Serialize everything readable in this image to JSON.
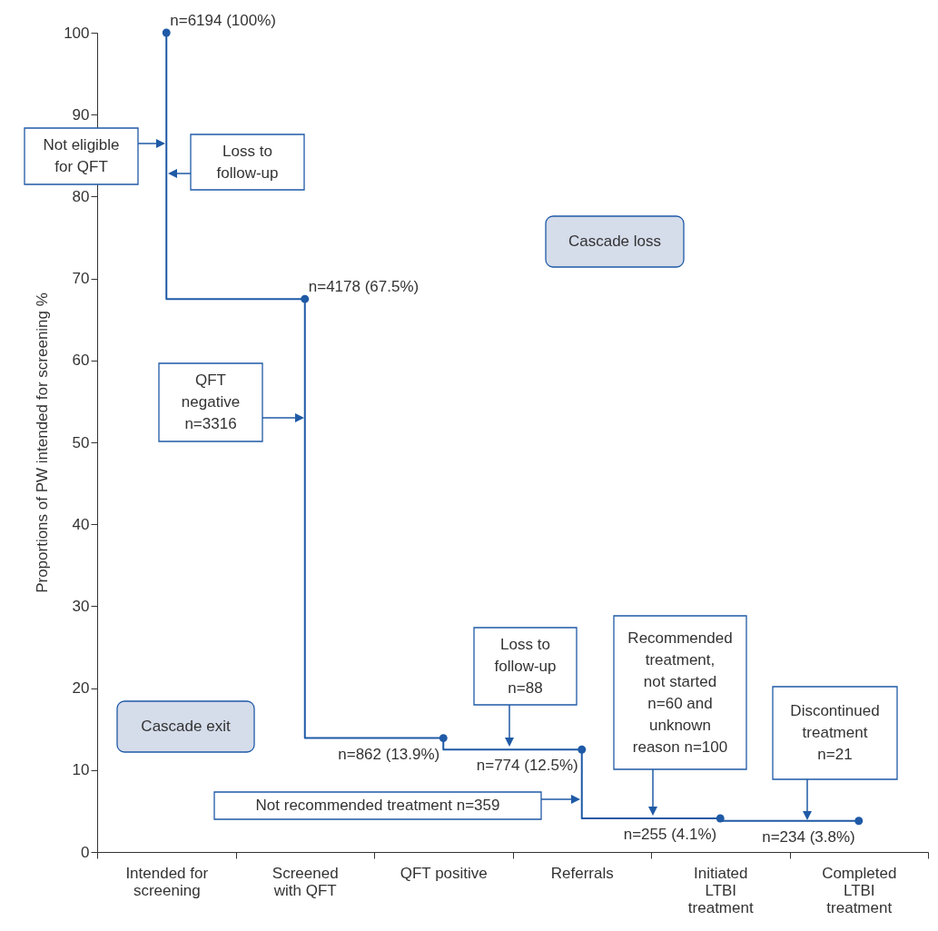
{
  "chart_data": {
    "type": "step",
    "categories": [
      "Intended for\nscreening",
      "Screened\nwith QFT",
      "QFT positive",
      "Referrals",
      "Initiated\nLTBI\ntreatment",
      "Completed\nLTBI\ntreatment"
    ],
    "values": [
      100,
      67.5,
      13.9,
      12.5,
      4.1,
      3.8
    ],
    "value_labels": [
      "n=6194 (100%)",
      "n=4178 (67.5%)",
      "n=862 (13.9%)",
      "n=774 (12.5%)",
      "n=255 (4.1%)",
      "n=234 (3.8%)"
    ],
    "color": "#1f5aa6",
    "marker": "circle",
    "grid": false,
    "ylabel": "Proportions of PW intended for screening %",
    "ylim": [
      0,
      100
    ],
    "yticks": [
      0,
      10,
      20,
      30,
      40,
      50,
      60,
      70,
      80,
      90,
      100
    ],
    "annotations": [
      "Not eligible\nfor QFT",
      "Loss to\nfollow-up",
      "Cascade loss",
      "QFT\nnegative\nn=3316",
      "Cascade exit",
      "Loss to\nfollow-up\nn=88",
      "Recommended\ntreatment,\nnot started\nn=60 and\nunknown\nreason n=100",
      "Discontinued\ntreatment\nn=21",
      "Not recommended treatment n=359"
    ]
  }
}
